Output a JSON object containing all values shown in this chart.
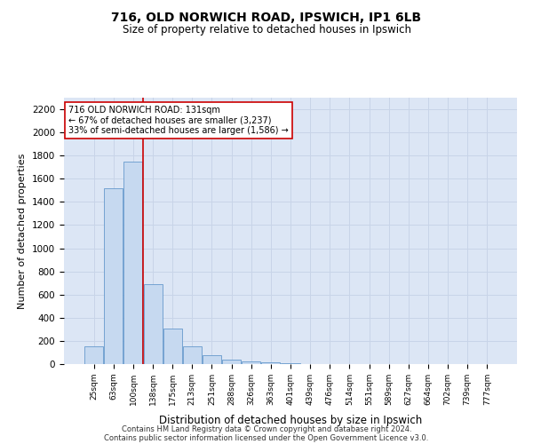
{
  "title1": "716, OLD NORWICH ROAD, IPSWICH, IP1 6LB",
  "title2": "Size of property relative to detached houses in Ipswich",
  "xlabel": "Distribution of detached houses by size in Ipswich",
  "ylabel": "Number of detached properties",
  "categories": [
    "25sqm",
    "63sqm",
    "100sqm",
    "138sqm",
    "175sqm",
    "213sqm",
    "251sqm",
    "288sqm",
    "326sqm",
    "363sqm",
    "401sqm",
    "439sqm",
    "476sqm",
    "514sqm",
    "551sqm",
    "589sqm",
    "627sqm",
    "664sqm",
    "702sqm",
    "739sqm",
    "777sqm"
  ],
  "values": [
    150,
    1520,
    1750,
    690,
    310,
    155,
    80,
    40,
    25,
    15,
    5,
    2,
    2,
    0,
    0,
    0,
    0,
    0,
    0,
    0,
    0
  ],
  "bar_color": "#c6d9f0",
  "bar_edge_color": "#6699cc",
  "vline_x": 2.5,
  "vline_color": "#cc0000",
  "annotation_text": "716 OLD NORWICH ROAD: 131sqm\n← 67% of detached houses are smaller (3,237)\n33% of semi-detached houses are larger (1,586) →",
  "annotation_box_color": "#ffffff",
  "annotation_box_edge": "#cc0000",
  "ylim": [
    0,
    2300
  ],
  "yticks": [
    0,
    200,
    400,
    600,
    800,
    1000,
    1200,
    1400,
    1600,
    1800,
    2000,
    2200
  ],
  "footnote1": "Contains HM Land Registry data © Crown copyright and database right 2024.",
  "footnote2": "Contains public sector information licensed under the Open Government Licence v3.0.",
  "grid_color": "#c8d4e8",
  "background_color": "#dce6f5"
}
